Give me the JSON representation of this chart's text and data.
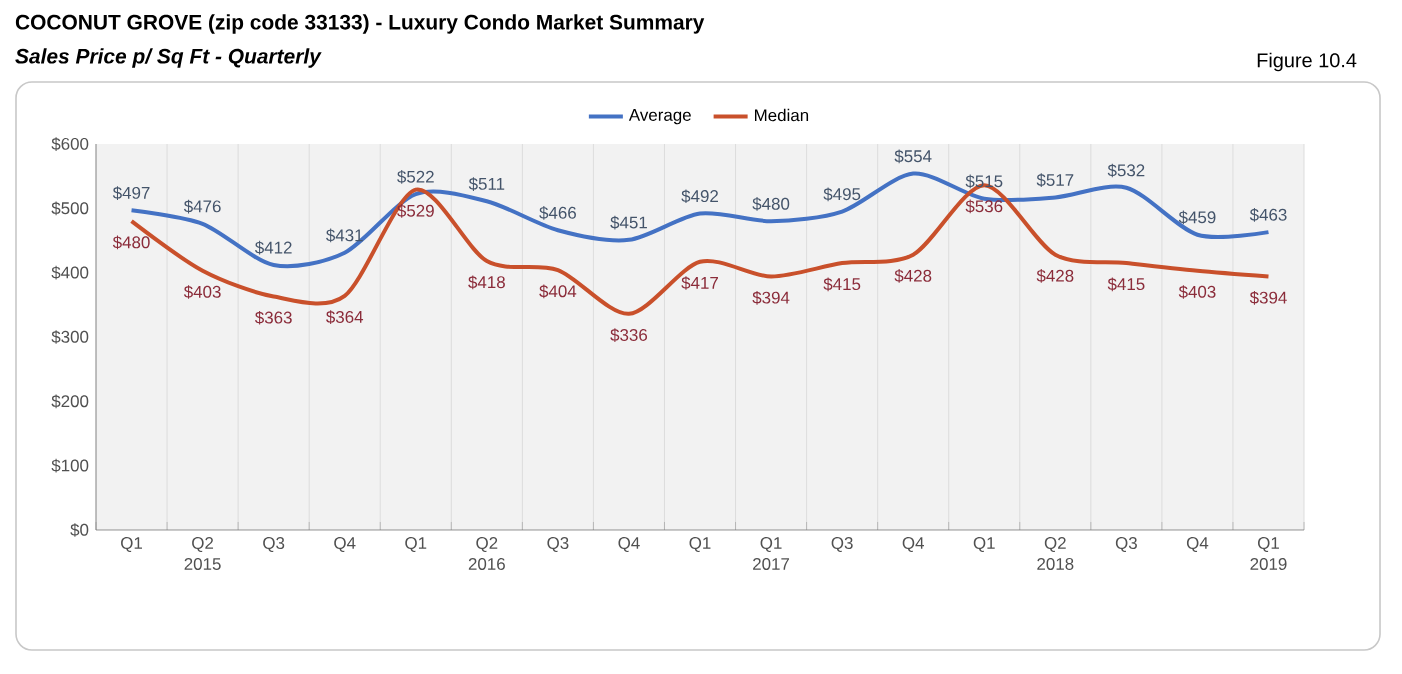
{
  "chart_data": {
    "type": "line",
    "title": "COCONUT GROVE (zip code 33133) - Luxury Condo Market Summary",
    "subtitle": "Sales Price p/ Sq Ft - Quarterly",
    "annotations": [
      "Figure 10.4"
    ],
    "categories": [
      "Q1",
      "Q2 2015",
      "Q3",
      "Q4",
      "Q1",
      "Q2 2016",
      "Q3",
      "Q4",
      "Q1",
      "Q1 2017",
      "Q3",
      "Q4",
      "Q1",
      "Q2 2018",
      "Q3",
      "Q4",
      "Q1 2019"
    ],
    "series": [
      {
        "name": "Average",
        "color": "#4472c4",
        "values": [
          497,
          476,
          412,
          431,
          522,
          511,
          466,
          451,
          492,
          480,
          495,
          554,
          515,
          517,
          532,
          459,
          463
        ],
        "value_labels": [
          "$497",
          "$476",
          "$412",
          "$431",
          "$522",
          "$511",
          "$466",
          "$451",
          "$492",
          "$480",
          "$495",
          "$554",
          "$515",
          "$517",
          "$532",
          "$459",
          "$463"
        ]
      },
      {
        "name": "Median",
        "color": "#c9502b",
        "values": [
          480,
          403,
          363,
          364,
          529,
          418,
          404,
          336,
          417,
          394,
          415,
          428,
          536,
          428,
          415,
          403,
          394
        ],
        "value_labels": [
          "$480",
          "$403",
          "$363",
          "$364",
          "$529",
          "$418",
          "$404",
          "$336",
          "$417",
          "$394",
          "$415",
          "$428",
          "$536",
          "$428",
          "$415",
          "$403",
          "$394"
        ]
      }
    ],
    "ylim": [
      0,
      600
    ],
    "yticks": [
      {
        "value": 0,
        "label": "$0"
      },
      {
        "value": 100,
        "label": "$100"
      },
      {
        "value": 200,
        "label": "$200"
      },
      {
        "value": 300,
        "label": "$300"
      },
      {
        "value": 400,
        "label": "$400"
      },
      {
        "value": 500,
        "label": "$500"
      },
      {
        "value": 600,
        "label": "$600"
      }
    ],
    "grid": "x",
    "legend": "top",
    "marker": "none",
    "line_style": "solid"
  }
}
